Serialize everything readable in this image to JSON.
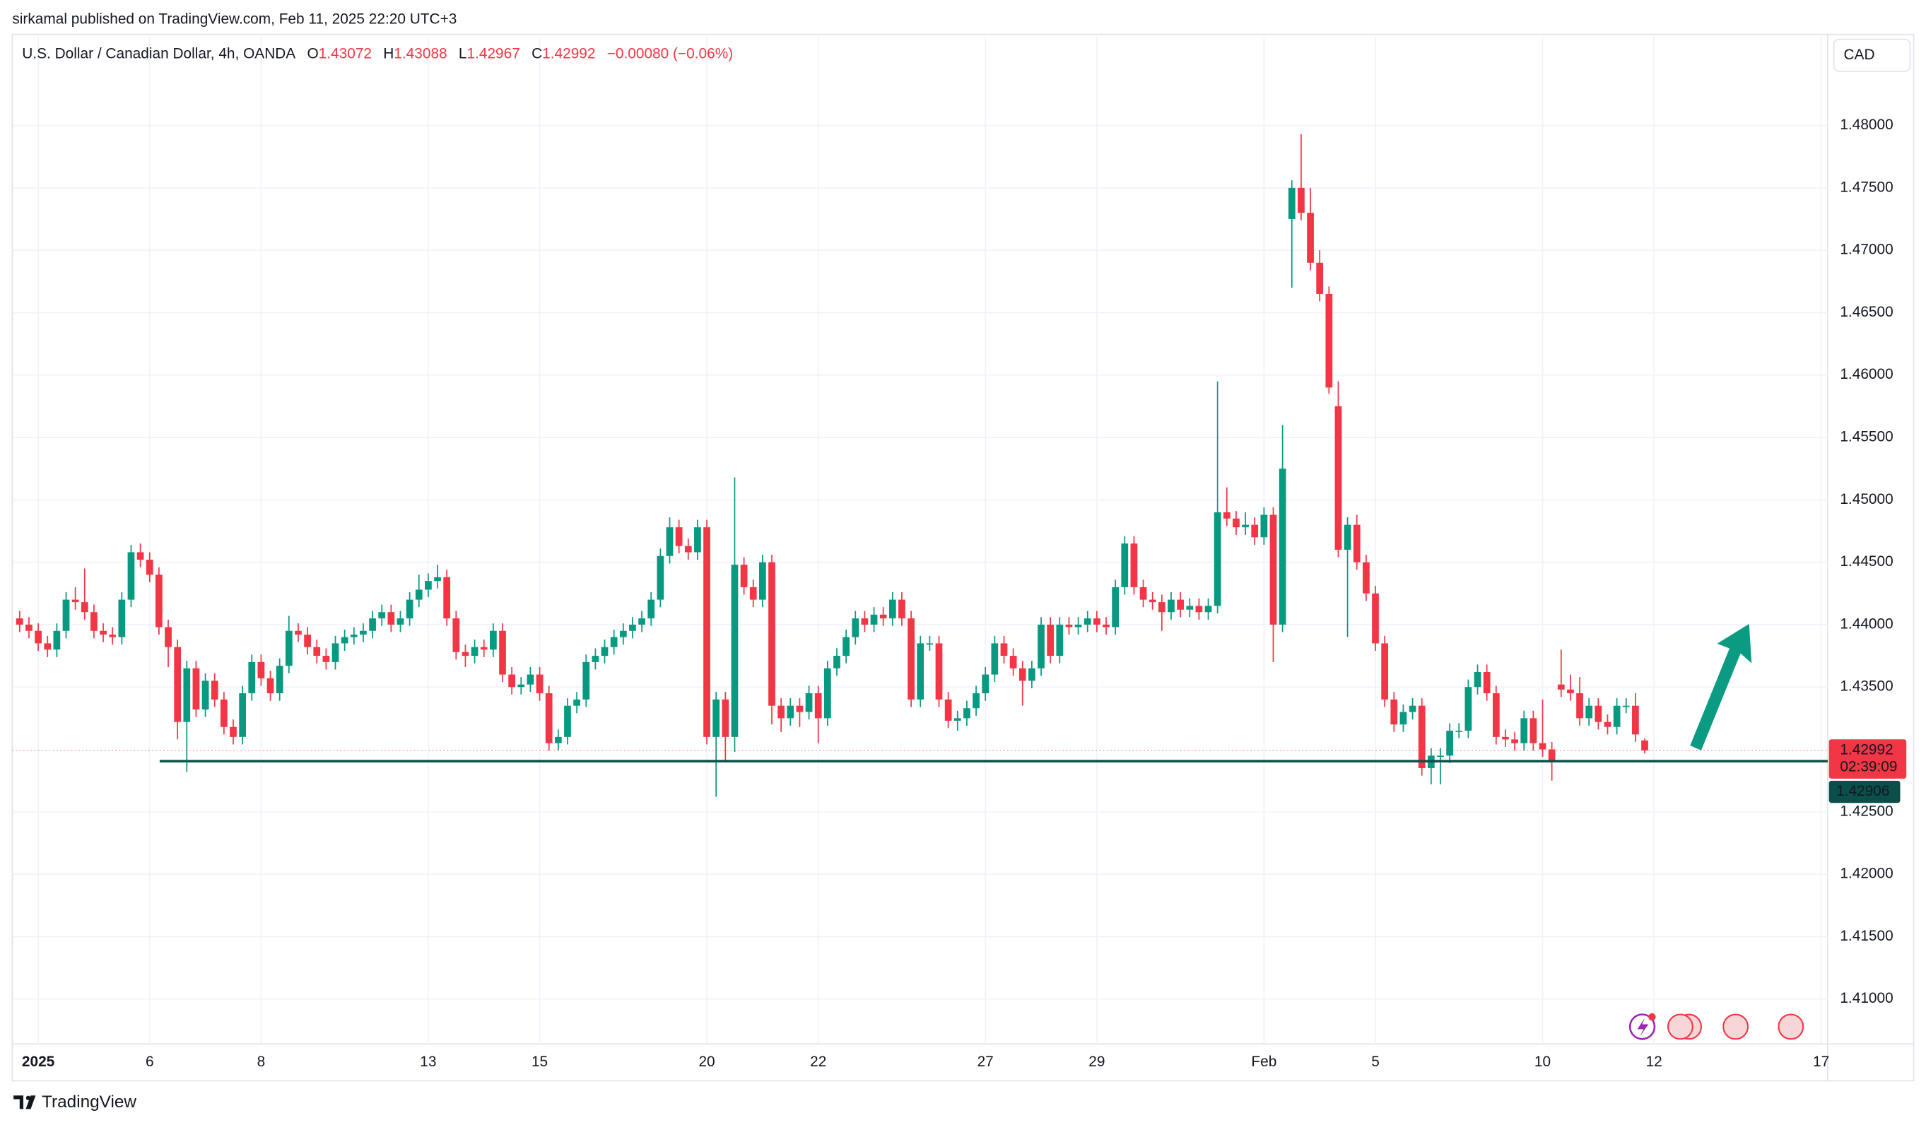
{
  "header": {
    "publisher": "sirkamal published on TradingView.com, Feb 11, 2025 22:20 UTC+3",
    "brand": "TradingView"
  },
  "chart_data": {
    "type": "candlestick",
    "title": "U.S. Dollar / Canadian Dollar, 4h, OANDA",
    "ohlc_labels": [
      "O",
      "H",
      "L",
      "C"
    ],
    "change_label": "−0.00080 (−0.06%)",
    "currency": "CAD",
    "countdown": "02:39:09",
    "support_line": 1.42906,
    "up_color": "#089981",
    "down_color": "#f23645",
    "support_color": "#0b4f4a",
    "grid": true,
    "ylim": [
      1.4064,
      1.4871
    ],
    "yticks": [
      {
        "value": 1.41,
        "label": "1.41000"
      },
      {
        "value": 1.415,
        "label": "1.41500"
      },
      {
        "value": 1.42,
        "label": "1.42000"
      },
      {
        "value": 1.425,
        "label": "1.42500"
      },
      {
        "value": 1.435,
        "label": "1.43500"
      },
      {
        "value": 1.44,
        "label": "1.44000"
      },
      {
        "value": 1.445,
        "label": "1.44500"
      },
      {
        "value": 1.45,
        "label": "1.45000"
      },
      {
        "value": 1.455,
        "label": "1.45500"
      },
      {
        "value": 1.46,
        "label": "1.46000"
      },
      {
        "value": 1.465,
        "label": "1.46500"
      },
      {
        "value": 1.47,
        "label": "1.47000"
      },
      {
        "value": 1.475,
        "label": "1.47500"
      },
      {
        "value": 1.48,
        "label": "1.48000"
      }
    ],
    "categories": [
      null,
      null,
      "2025",
      null,
      null,
      null,
      null,
      null,
      null,
      null,
      null,
      null,
      null,
      null,
      "6",
      null,
      null,
      null,
      null,
      null,
      null,
      null,
      null,
      null,
      null,
      null,
      "8",
      null,
      null,
      null,
      null,
      null,
      null,
      null,
      null,
      null,
      null,
      null,
      null,
      null,
      null,
      null,
      null,
      null,
      "13",
      null,
      null,
      null,
      null,
      null,
      null,
      null,
      null,
      null,
      null,
      null,
      "15",
      null,
      null,
      null,
      null,
      null,
      null,
      null,
      null,
      null,
      null,
      null,
      null,
      null,
      null,
      null,
      null,
      null,
      "20",
      null,
      null,
      null,
      null,
      null,
      null,
      null,
      null,
      null,
      null,
      null,
      "22",
      null,
      null,
      null,
      null,
      null,
      null,
      null,
      null,
      null,
      null,
      null,
      null,
      null,
      null,
      null,
      null,
      null,
      "27",
      null,
      null,
      null,
      null,
      null,
      null,
      null,
      null,
      null,
      null,
      null,
      "29",
      null,
      null,
      null,
      null,
      null,
      null,
      null,
      null,
      null,
      null,
      null,
      null,
      null,
      null,
      null,
      null,
      null,
      "Feb",
      null,
      null,
      null,
      null,
      null,
      null,
      null,
      null,
      null,
      null,
      null,
      "5",
      null,
      null,
      null,
      null,
      null,
      null,
      null,
      null,
      null,
      null,
      null,
      null,
      null,
      null,
      null,
      null,
      null,
      "10",
      null,
      null,
      null,
      null,
      null,
      null,
      null,
      null,
      null,
      null,
      null,
      "12",
      null,
      null,
      null,
      null,
      null,
      null,
      null,
      null,
      null,
      null,
      null,
      null,
      null,
      null,
      null,
      null,
      null,
      "17"
    ],
    "open": [
      1.4405,
      1.44,
      1.4395,
      1.4385,
      1.438,
      1.4395,
      1.442,
      1.4418,
      1.441,
      1.4395,
      1.4392,
      1.439,
      1.442,
      1.4458,
      1.4452,
      1.444,
      1.4398,
      1.4382,
      1.4322,
      1.4365,
      1.4332,
      1.4355,
      1.434,
      1.4318,
      1.431,
      1.4345,
      1.437,
      1.4357,
      1.4345,
      1.4367,
      1.4395,
      1.4392,
      1.4382,
      1.4375,
      1.437,
      1.4385,
      1.439,
      1.4392,
      1.4395,
      1.4405,
      1.441,
      1.44,
      1.4405,
      1.442,
      1.4428,
      1.4435,
      1.4438,
      1.4405,
      1.4378,
      1.4375,
      1.4382,
      1.438,
      1.4395,
      1.436,
      1.435,
      1.4352,
      1.436,
      1.4345,
      1.4305,
      1.431,
      1.4335,
      1.434,
      1.437,
      1.4375,
      1.4382,
      1.439,
      1.4395,
      1.44,
      1.4405,
      1.442,
      1.4455,
      1.4478,
      1.4463,
      1.4458,
      1.4478,
      1.431,
      1.434,
      1.431,
      1.4448,
      1.443,
      1.442,
      1.445,
      1.4335,
      1.4325,
      1.4335,
      1.433,
      1.4345,
      1.4325,
      1.4365,
      1.4375,
      1.439,
      1.4405,
      1.44,
      1.4408,
      1.4405,
      1.442,
      1.4405,
      1.434,
      1.4385,
      1.4385,
      1.434,
      1.4323,
      1.4325,
      1.4333,
      1.4345,
      1.436,
      1.4385,
      1.4375,
      1.4365,
      1.4355,
      1.4365,
      1.44,
      1.4375,
      1.44,
      1.4398,
      1.44,
      1.4405,
      1.44,
      1.4398,
      1.443,
      1.4465,
      1.443,
      1.442,
      1.4418,
      1.441,
      1.442,
      1.4412,
      1.4415,
      1.441,
      1.4415,
      1.449,
      1.4485,
      1.4478,
      1.448,
      1.447,
      1.4488,
      1.44,
      1.4725,
      1.475,
      1.473,
      1.469,
      1.4665,
      1.4575,
      1.446,
      1.448,
      1.445,
      1.4425,
      1.4385,
      1.434,
      1.432,
      1.433,
      1.4335,
      1.4285,
      1.4295,
      1.4295,
      1.4315,
      1.4315,
      1.435,
      1.4362,
      1.4345,
      1.431,
      1.4308,
      1.4305,
      1.4325,
      1.4305,
      1.43,
      1.4352,
      1.4348,
      1.4345,
      1.4325,
      1.4335,
      1.4322,
      1.4318,
      1.4335,
      1.4335,
      1.43072,
      null,
      null,
      null,
      null,
      null,
      null,
      null,
      null,
      null,
      null,
      null,
      null,
      null,
      null,
      null,
      null,
      null,
      null,
      null
    ],
    "high": [
      1.4411,
      1.4406,
      1.4401,
      1.4391,
      1.4401,
      1.4426,
      1.443,
      1.4445,
      1.4416,
      1.4401,
      1.4398,
      1.4426,
      1.4464,
      1.4465,
      1.4458,
      1.4446,
      1.4404,
      1.4388,
      1.4371,
      1.4371,
      1.4361,
      1.4361,
      1.4346,
      1.4324,
      1.4351,
      1.4376,
      1.4376,
      1.4363,
      1.4373,
      1.4407,
      1.4401,
      1.4398,
      1.4388,
      1.4381,
      1.4391,
      1.4396,
      1.4398,
      1.4401,
      1.4411,
      1.4416,
      1.4416,
      1.4411,
      1.4426,
      1.444,
      1.4441,
      1.4448,
      1.4444,
      1.4411,
      1.4384,
      1.4388,
      1.4388,
      1.4401,
      1.4401,
      1.4366,
      1.4358,
      1.4366,
      1.4366,
      1.4351,
      1.4316,
      1.4341,
      1.4346,
      1.4376,
      1.4381,
      1.4388,
      1.4396,
      1.4401,
      1.4406,
      1.4411,
      1.4426,
      1.4461,
      1.4486,
      1.4484,
      1.4469,
      1.4484,
      1.4484,
      1.4346,
      1.4346,
      1.4518,
      1.4454,
      1.4436,
      1.4456,
      1.4456,
      1.4341,
      1.4341,
      1.4341,
      1.4351,
      1.4351,
      1.4371,
      1.4381,
      1.4396,
      1.4411,
      1.4411,
      1.4414,
      1.4414,
      1.4426,
      1.4426,
      1.4411,
      1.4391,
      1.4391,
      1.4391,
      1.4346,
      1.4331,
      1.4339,
      1.4351,
      1.4366,
      1.4391,
      1.4391,
      1.4381,
      1.4371,
      1.4371,
      1.4406,
      1.4406,
      1.4406,
      1.4406,
      1.4406,
      1.4411,
      1.4411,
      1.4406,
      1.4436,
      1.4471,
      1.4471,
      1.4436,
      1.4426,
      1.4424,
      1.4426,
      1.4426,
      1.4421,
      1.4421,
      1.4421,
      1.4595,
      1.451,
      1.4491,
      1.449,
      1.4486,
      1.4494,
      1.4494,
      1.456,
      1.4756,
      1.4793,
      1.475,
      1.47,
      1.4671,
      1.4595,
      1.4486,
      1.4488,
      1.4456,
      1.4431,
      1.4391,
      1.4346,
      1.4336,
      1.4341,
      1.4341,
      1.4301,
      1.4301,
      1.4321,
      1.4321,
      1.4356,
      1.4368,
      1.4368,
      1.4351,
      1.4316,
      1.4314,
      1.4331,
      1.4331,
      1.434,
      1.4306,
      1.438,
      1.436,
      1.4358,
      1.4341,
      1.4341,
      1.4328,
      1.4341,
      1.4341,
      1.4345,
      1.43088,
      null,
      null,
      null,
      null,
      null,
      null,
      null,
      null,
      null,
      null,
      null,
      null,
      null,
      null,
      null,
      null,
      null,
      null,
      null
    ],
    "low": [
      1.4394,
      1.4389,
      1.4379,
      1.4374,
      1.4374,
      1.4389,
      1.4412,
      1.4404,
      1.4389,
      1.4386,
      1.4384,
      1.4384,
      1.4414,
      1.4446,
      1.4434,
      1.4392,
      1.4366,
      1.4308,
      1.4282,
      1.4326,
      1.4326,
      1.4334,
      1.4312,
      1.4304,
      1.4304,
      1.4339,
      1.4351,
      1.4339,
      1.4339,
      1.4361,
      1.4386,
      1.4376,
      1.4369,
      1.4364,
      1.4364,
      1.4379,
      1.4384,
      1.4386,
      1.4389,
      1.4399,
      1.4394,
      1.4394,
      1.4399,
      1.4414,
      1.4422,
      1.4429,
      1.4399,
      1.4372,
      1.4366,
      1.4369,
      1.4374,
      1.4374,
      1.4354,
      1.4344,
      1.4344,
      1.4346,
      1.4339,
      1.4299,
      1.4299,
      1.4304,
      1.4329,
      1.4334,
      1.4364,
      1.4369,
      1.4376,
      1.4384,
      1.4389,
      1.4394,
      1.4399,
      1.4414,
      1.4449,
      1.4457,
      1.4452,
      1.4452,
      1.4304,
      1.4262,
      1.429,
      1.4298,
      1.4424,
      1.4414,
      1.4414,
      1.432,
      1.4314,
      1.4319,
      1.4318,
      1.4324,
      1.4305,
      1.4319,
      1.4359,
      1.4369,
      1.4384,
      1.4394,
      1.4394,
      1.4399,
      1.4399,
      1.4399,
      1.4334,
      1.4334,
      1.4379,
      1.4334,
      1.4317,
      1.4315,
      1.4319,
      1.4327,
      1.4339,
      1.4354,
      1.4369,
      1.4359,
      1.4335,
      1.4349,
      1.4359,
      1.4369,
      1.4369,
      1.4392,
      1.4392,
      1.4394,
      1.4394,
      1.4392,
      1.4392,
      1.4424,
      1.4424,
      1.4414,
      1.4412,
      1.4395,
      1.4404,
      1.4406,
      1.4406,
      1.4404,
      1.4404,
      1.4409,
      1.4479,
      1.4472,
      1.4472,
      1.4464,
      1.4464,
      1.437,
      1.4394,
      1.467,
      1.4724,
      1.4684,
      1.4659,
      1.4585,
      1.4454,
      1.439,
      1.4444,
      1.4419,
      1.4379,
      1.4334,
      1.4314,
      1.4314,
      1.4324,
      1.4279,
      1.4272,
      1.4272,
      1.4289,
      1.4309,
      1.4309,
      1.4344,
      1.4339,
      1.4304,
      1.4302,
      1.4299,
      1.4299,
      1.4299,
      1.4294,
      1.4275,
      1.4342,
      1.4339,
      1.4319,
      1.4319,
      1.4316,
      1.4312,
      1.4312,
      1.4329,
      1.4306,
      1.42967,
      null,
      null,
      null,
      null,
      null,
      null,
      null,
      null,
      null,
      null,
      null,
      null,
      null,
      null,
      null,
      null,
      null,
      null,
      null
    ],
    "close": [
      1.44,
      1.4395,
      1.4385,
      1.438,
      1.4395,
      1.442,
      1.4418,
      1.441,
      1.4395,
      1.4392,
      1.439,
      1.442,
      1.4458,
      1.4452,
      1.444,
      1.4398,
      1.4382,
      1.4322,
      1.4365,
      1.4332,
      1.4355,
      1.434,
      1.4318,
      1.431,
      1.4345,
      1.437,
      1.4357,
      1.4345,
      1.4367,
      1.4395,
      1.4392,
      1.4382,
      1.4375,
      1.437,
      1.4385,
      1.439,
      1.4392,
      1.4395,
      1.4405,
      1.441,
      1.44,
      1.4405,
      1.442,
      1.4428,
      1.4435,
      1.4438,
      1.4405,
      1.4378,
      1.4375,
      1.4382,
      1.438,
      1.4395,
      1.436,
      1.435,
      1.4352,
      1.436,
      1.4345,
      1.4305,
      1.431,
      1.4335,
      1.434,
      1.437,
      1.4375,
      1.4382,
      1.439,
      1.4395,
      1.44,
      1.4405,
      1.442,
      1.4455,
      1.4478,
      1.4463,
      1.4458,
      1.4478,
      1.431,
      1.434,
      1.431,
      1.4448,
      1.443,
      1.442,
      1.445,
      1.4335,
      1.4325,
      1.4335,
      1.433,
      1.4345,
      1.4325,
      1.4365,
      1.4375,
      1.439,
      1.4405,
      1.44,
      1.4408,
      1.4405,
      1.442,
      1.4405,
      1.434,
      1.4385,
      1.4385,
      1.434,
      1.4323,
      1.4325,
      1.4333,
      1.4345,
      1.436,
      1.4385,
      1.4375,
      1.4365,
      1.4355,
      1.4365,
      1.44,
      1.4375,
      1.44,
      1.4398,
      1.44,
      1.4405,
      1.44,
      1.4398,
      1.443,
      1.4465,
      1.443,
      1.442,
      1.4418,
      1.441,
      1.442,
      1.4412,
      1.4415,
      1.441,
      1.4415,
      1.449,
      1.4485,
      1.4478,
      1.448,
      1.447,
      1.4488,
      1.44,
      1.4525,
      1.475,
      1.473,
      1.469,
      1.4665,
      1.459,
      1.446,
      1.448,
      1.445,
      1.4425,
      1.4385,
      1.434,
      1.432,
      1.433,
      1.4335,
      1.4285,
      1.4295,
      1.4295,
      1.4315,
      1.4315,
      1.435,
      1.4362,
      1.4345,
      1.431,
      1.4308,
      1.4305,
      1.4325,
      1.4305,
      1.43,
      1.429,
      1.4348,
      1.4345,
      1.4325,
      1.4335,
      1.4322,
      1.4318,
      1.4335,
      1.4335,
      1.4312,
      1.42992,
      null,
      null,
      null,
      null,
      null,
      null,
      null,
      null,
      null,
      null,
      null,
      null,
      null,
      null,
      null,
      null,
      null,
      null,
      null
    ]
  }
}
